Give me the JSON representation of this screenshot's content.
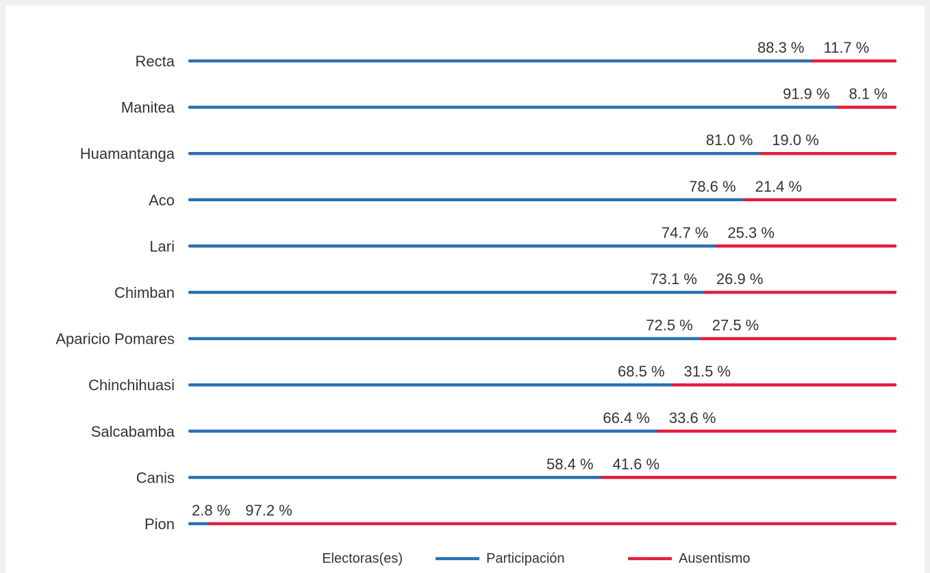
{
  "chart_data": {
    "type": "stacked-bar",
    "legend_title": "Electoras(es)",
    "categories": [
      "Recta",
      "Manitea",
      "Huamantanga",
      "Aco",
      "Lari",
      "Chimban",
      "Aparicio Pomares",
      "Chinchihuasi",
      "Salcabamba",
      "Canis",
      "Pion"
    ],
    "xlim": [
      0,
      100
    ],
    "series": [
      {
        "name": "Participación",
        "color": "#2a70b3",
        "values": [
          88.3,
          91.9,
          81.0,
          78.6,
          74.7,
          73.1,
          72.5,
          68.5,
          66.4,
          58.4,
          2.8
        ],
        "value_labels": [
          "88.3 %",
          "91.9 %",
          "81.0 %",
          "78.6 %",
          "74.7 %",
          "73.1 %",
          "72.5 %",
          "68.5 %",
          "66.4 %",
          "58.4 %",
          "2.8 %"
        ]
      },
      {
        "name": "Ausentismo",
        "color": "#e31d3c",
        "values": [
          11.7,
          8.1,
          19.0,
          21.4,
          25.3,
          26.9,
          27.5,
          31.5,
          33.6,
          41.6,
          97.2
        ],
        "value_labels": [
          "11.7 %",
          "8.1 %",
          "19.0 %",
          "21.4 %",
          "25.3 %",
          "26.9 %",
          "27.5 %",
          "31.5 %",
          "33.6 %",
          "41.6 %",
          "97.2 %"
        ]
      }
    ]
  }
}
